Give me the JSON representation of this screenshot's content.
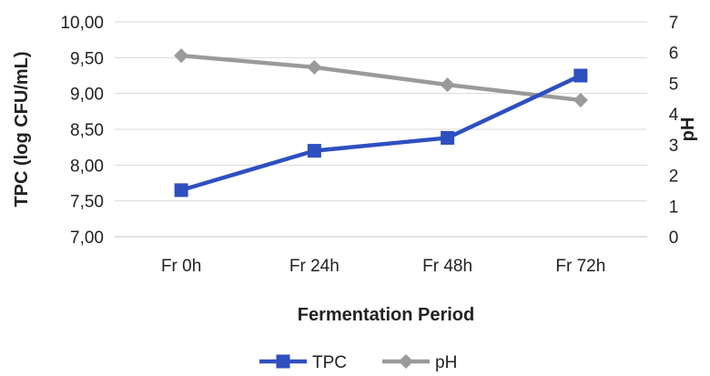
{
  "chart_data": {
    "type": "line",
    "title": "",
    "categories": [
      "Fr 0h",
      "Fr 24h",
      "Fr 48h",
      "Fr 72h"
    ],
    "xlabel": "Fermentation Period",
    "ylabel_left": "TPC (log CFU/mL)",
    "ylabel_right": "pH",
    "y_left": {
      "range": [
        7.0,
        10.0
      ],
      "ticks": [
        "7,00",
        "7,50",
        "8,00",
        "8,50",
        "9,00",
        "9,50",
        "10,00"
      ],
      "tick_values": [
        7.0,
        7.5,
        8.0,
        8.5,
        9.0,
        9.5,
        10.0
      ]
    },
    "y_right": {
      "range": [
        0,
        7
      ],
      "ticks": [
        "0",
        "1",
        "2",
        "3",
        "4",
        "5",
        "6",
        "7"
      ],
      "tick_values": [
        0,
        1,
        2,
        3,
        4,
        5,
        6,
        7
      ]
    },
    "gridlines": true,
    "legend_position": "bottom",
    "series": [
      {
        "name": "TPC",
        "axis": "left",
        "marker": "square",
        "color": "#2E4FC0",
        "values": [
          7.65,
          8.2,
          8.38,
          9.25
        ]
      },
      {
        "name": "pH",
        "axis": "right",
        "marker": "diamond",
        "color": "#9A9A9A",
        "values": [
          5.9,
          5.52,
          4.95,
          4.45
        ]
      }
    ],
    "legend": [
      {
        "label": "TPC",
        "color": "#2E4FC0",
        "marker": "square"
      },
      {
        "label": "pH",
        "color": "#9A9A9A",
        "marker": "diamond"
      }
    ],
    "colors": {
      "grid": "#D9D9D9",
      "text": "#222222"
    }
  }
}
